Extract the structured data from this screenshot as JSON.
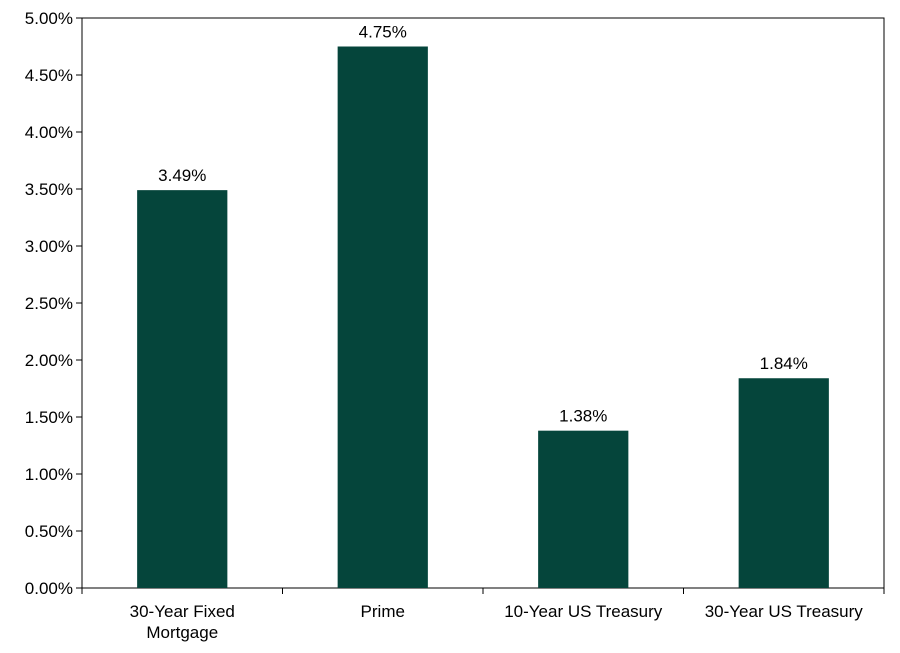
{
  "chart_data": {
    "type": "bar",
    "categories": [
      [
        "30-Year Fixed",
        "Mortgage"
      ],
      [
        "Prime"
      ],
      [
        "10-Year US Treasury"
      ],
      [
        "30-Year US Treasury"
      ]
    ],
    "values": [
      3.49,
      4.75,
      1.38,
      1.84
    ],
    "data_labels": [
      "3.49%",
      "4.75%",
      "1.38%",
      "1.84%"
    ],
    "ylim": [
      0,
      5
    ],
    "y_ticks": [
      0,
      0.5,
      1,
      1.5,
      2,
      2.5,
      3,
      3.5,
      4,
      4.5,
      5
    ],
    "y_tick_labels": [
      "0.00%",
      "0.50%",
      "1.00%",
      "1.50%",
      "2.00%",
      "2.50%",
      "3.00%",
      "3.50%",
      "4.00%",
      "4.50%",
      "5.00%"
    ],
    "title": "",
    "xlabel": "",
    "ylabel": "",
    "grid": false,
    "legend": "none",
    "bar_color": "#05453B"
  }
}
